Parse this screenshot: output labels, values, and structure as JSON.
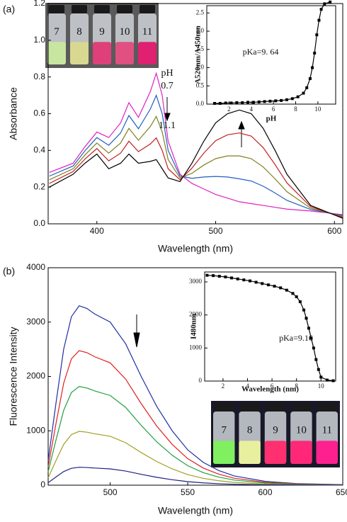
{
  "panel_labels": [
    "(a)",
    "(b)"
  ],
  "photos": [
    {
      "labels": [
        "7",
        "8",
        "9",
        "10",
        "11"
      ]
    },
    {
      "labels": [
        "7",
        "8",
        "9",
        "10",
        "11"
      ]
    }
  ],
  "chart_data": [
    {
      "type": "line",
      "x_label": "Wavelength (nm)",
      "y_label": "Absorbance",
      "x": [
        360,
        380,
        390,
        400,
        410,
        420,
        427,
        435,
        445,
        450,
        455,
        460,
        470,
        480,
        490,
        500,
        510,
        520,
        530,
        540,
        550,
        560,
        580,
        607
      ],
      "series": [
        {
          "color": "#e020c0",
          "values": [
            0.28,
            0.33,
            0.42,
            0.5,
            0.47,
            0.55,
            0.66,
            0.58,
            0.72,
            0.82,
            0.7,
            0.45,
            0.27,
            0.22,
            0.19,
            0.16,
            0.14,
            0.12,
            0.11,
            0.1,
            0.09,
            0.08,
            0.07,
            0.05
          ]
        },
        {
          "color": "#2060c0",
          "values": [
            0.26,
            0.315,
            0.398,
            0.47,
            0.428,
            0.495,
            0.59,
            0.518,
            0.625,
            0.7,
            0.6,
            0.4,
            0.26,
            0.248,
            0.255,
            0.258,
            0.255,
            0.245,
            0.233,
            0.205,
            0.168,
            0.128,
            0.078,
            0.045
          ]
        },
        {
          "color": "#808020",
          "values": [
            0.24,
            0.3,
            0.375,
            0.44,
            0.385,
            0.44,
            0.52,
            0.455,
            0.53,
            0.585,
            0.5,
            0.35,
            0.25,
            0.275,
            0.32,
            0.355,
            0.37,
            0.37,
            0.355,
            0.31,
            0.245,
            0.175,
            0.085,
            0.04
          ]
        },
        {
          "color": "#c02020",
          "values": [
            0.22,
            0.285,
            0.353,
            0.41,
            0.343,
            0.385,
            0.45,
            0.393,
            0.435,
            0.468,
            0.4,
            0.3,
            0.24,
            0.303,
            0.385,
            0.453,
            0.485,
            0.495,
            0.478,
            0.415,
            0.323,
            0.223,
            0.093,
            0.035
          ]
        },
        {
          "color": "#000000",
          "values": [
            0.2,
            0.27,
            0.33,
            0.38,
            0.3,
            0.33,
            0.38,
            0.33,
            0.34,
            0.35,
            0.3,
            0.25,
            0.23,
            0.33,
            0.45,
            0.55,
            0.6,
            0.62,
            0.6,
            0.52,
            0.4,
            0.27,
            0.1,
            0.03
          ]
        }
      ],
      "xlim": [
        359,
        607
      ],
      "xticks": [
        400,
        500,
        600
      ],
      "ylim": [
        0,
        1.2
      ],
      "yticks": [
        {
          "value": 0,
          "label": "0.0"
        },
        {
          "value": 0.2,
          "label": "0.2"
        },
        {
          "value": 0.4,
          "label": "0.4"
        },
        {
          "value": 0.6,
          "label": "0.6"
        },
        {
          "value": 0.8,
          "label": "0.8"
        },
        {
          "value": 1.0,
          "label": "1.0"
        },
        {
          "value": 1.2,
          "label": "1.2"
        }
      ],
      "annotations": [
        "pH",
        "0.7",
        "11.1"
      ]
    },
    {
      "type": "line",
      "x_label": "pH",
      "y_label": "A520nm/A450nm",
      "marker": "square",
      "x": [
        0.7,
        1.2,
        1.7,
        2.2,
        2.7,
        3.2,
        3.7,
        4.2,
        4.7,
        5.2,
        5.7,
        6.2,
        6.7,
        7.2,
        7.7,
        8.2,
        8.7,
        9.0,
        9.3,
        9.5,
        9.7,
        9.9,
        10.1,
        10.3,
        10.6,
        11.1
      ],
      "series": [
        {
          "color": "#000000",
          "values": [
            0.02,
            0.02,
            0.03,
            0.03,
            0.04,
            0.04,
            0.05,
            0.05,
            0.06,
            0.07,
            0.08,
            0.09,
            0.1,
            0.12,
            0.15,
            0.2,
            0.3,
            0.45,
            0.7,
            1.0,
            1.4,
            1.9,
            2.3,
            2.6,
            2.75,
            2.8
          ]
        }
      ],
      "xlim": [
        0,
        11.6
      ],
      "xticks": [
        2,
        4,
        6,
        8,
        10
      ],
      "ylim": [
        0,
        2.7
      ],
      "yticks": [
        {
          "value": 0,
          "label": "0.0"
        },
        {
          "value": 0.5,
          "label": "0.5"
        },
        {
          "value": 1.0,
          "label": "1.0"
        },
        {
          "value": 1.5,
          "label": "1.5"
        },
        {
          "value": 2.0,
          "label": "2.0"
        },
        {
          "value": 2.5,
          "label": "2.5"
        }
      ],
      "annotations": [
        "pKa=9. 64"
      ]
    },
    {
      "type": "line",
      "x_label": "Wavelength (nm)",
      "y_label": "Fluorescence Intensity",
      "x": [
        460,
        465,
        470,
        475,
        480,
        485,
        490,
        500,
        510,
        520,
        530,
        540,
        550,
        560,
        570,
        580,
        600,
        620,
        650
      ],
      "series": [
        {
          "color": "#2030a0",
          "values": [
            450,
            1500,
            2500,
            3100,
            3300,
            3250,
            3150,
            3000,
            2600,
            2000,
            1450,
            1000,
            650,
            420,
            270,
            170,
            70,
            30,
            10
          ]
        },
        {
          "color": "#e02020",
          "values": [
            338,
            1125,
            1875,
            2325,
            2475,
            2438,
            2363,
            2250,
            1950,
            1500,
            1088,
            750,
            488,
            315,
            203,
            128,
            53,
            23,
            8
          ]
        },
        {
          "color": "#20a040",
          "values": [
            248,
            825,
            1375,
            1705,
            1815,
            1788,
            1733,
            1650,
            1430,
            1100,
            798,
            550,
            358,
            231,
            149,
            94,
            39,
            17,
            6
          ]
        },
        {
          "color": "#a0a020",
          "values": [
            135,
            450,
            750,
            930,
            990,
            975,
            945,
            900,
            780,
            600,
            435,
            300,
            195,
            126,
            81,
            51,
            21,
            9,
            3
          ]
        },
        {
          "color": "#202080",
          "values": [
            45,
            150,
            250,
            310,
            330,
            325,
            315,
            300,
            260,
            200,
            145,
            100,
            65,
            42,
            27,
            17,
            7,
            3,
            1
          ]
        }
      ],
      "xlim": [
        460,
        650
      ],
      "xticks": [
        500,
        550,
        600,
        650
      ],
      "ylim": [
        0,
        4000
      ],
      "yticks": [
        0,
        1000,
        2000,
        3000,
        4000
      ],
      "annotations": []
    },
    {
      "type": "line",
      "x_label": "Wavelength (nm)",
      "y_label": "I480nm",
      "marker": "square",
      "x": [
        0.7,
        1.2,
        1.7,
        2.2,
        2.7,
        3.2,
        3.7,
        4.2,
        4.7,
        5.2,
        5.7,
        6.2,
        6.7,
        7.2,
        7.7,
        8.0,
        8.3,
        8.6,
        8.8,
        9.0,
        9.2,
        9.4,
        9.6,
        9.8,
        10.0,
        10.5,
        11.0
      ],
      "series": [
        {
          "color": "#000000",
          "values": [
            3200,
            3190,
            3170,
            3150,
            3120,
            3090,
            3060,
            3030,
            2990,
            2950,
            2910,
            2870,
            2820,
            2750,
            2650,
            2550,
            2400,
            2150,
            1900,
            1600,
            1300,
            1000,
            650,
            350,
            120,
            30,
            10
          ]
        }
      ],
      "xlim": [
        0.5,
        11.2
      ],
      "xticks": [
        2,
        4,
        6,
        8,
        10
      ],
      "ylim": [
        0,
        3300
      ],
      "yticks": [
        0,
        1000,
        2000,
        3000
      ],
      "annotations": [
        "pKa=9.16"
      ]
    }
  ]
}
